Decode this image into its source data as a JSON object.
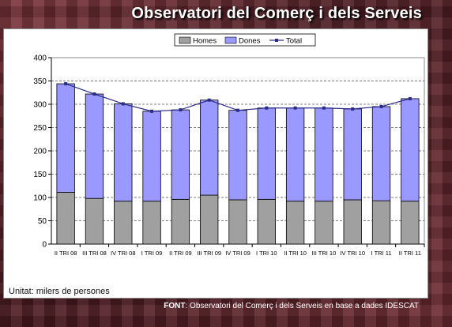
{
  "header": {
    "title": "Observatori del Comerç i dels Serveis"
  },
  "footer": {
    "unit": "Unitat: milers de persones",
    "source_label": "FONT",
    "source_text": ": Observatori del Comerç i dels Serveis en base a dades IDESCAT"
  },
  "colors": {
    "homes": "#a0a0a0",
    "dones": "#9999ff",
    "total": "#2b2b8c",
    "grid": "#000000"
  },
  "chart_data": {
    "type": "bar",
    "stacked": true,
    "categories": [
      "II TRI 08",
      "III TRI 08",
      "IV TRI 08",
      "I TRI 09",
      "II TRI 09",
      "III TRI 09",
      "IV TRI 09",
      "I TRI 10",
      "II TRI 10",
      "III TRI 10",
      "IV TRI 10",
      "I TRI 11",
      "II TRI 11"
    ],
    "series": [
      {
        "name": "Homes",
        "type": "bar",
        "values": [
          111,
          98,
          92,
          92,
          96,
          105,
          95,
          96,
          92,
          92,
          95,
          93,
          92
        ]
      },
      {
        "name": "Dones",
        "type": "bar",
        "values": [
          233,
          224,
          209,
          193,
          192,
          204,
          192,
          196,
          200,
          200,
          195,
          202,
          220
        ]
      },
      {
        "name": "Total",
        "type": "line",
        "values": [
          344,
          322,
          301,
          285,
          288,
          309,
          287,
          292,
          292,
          292,
          290,
          295,
          312
        ]
      }
    ],
    "ylim": [
      0,
      400
    ],
    "yticks": [
      0,
      50,
      100,
      150,
      200,
      250,
      300,
      350,
      400
    ],
    "grid": true,
    "legend_position": "top-center"
  }
}
